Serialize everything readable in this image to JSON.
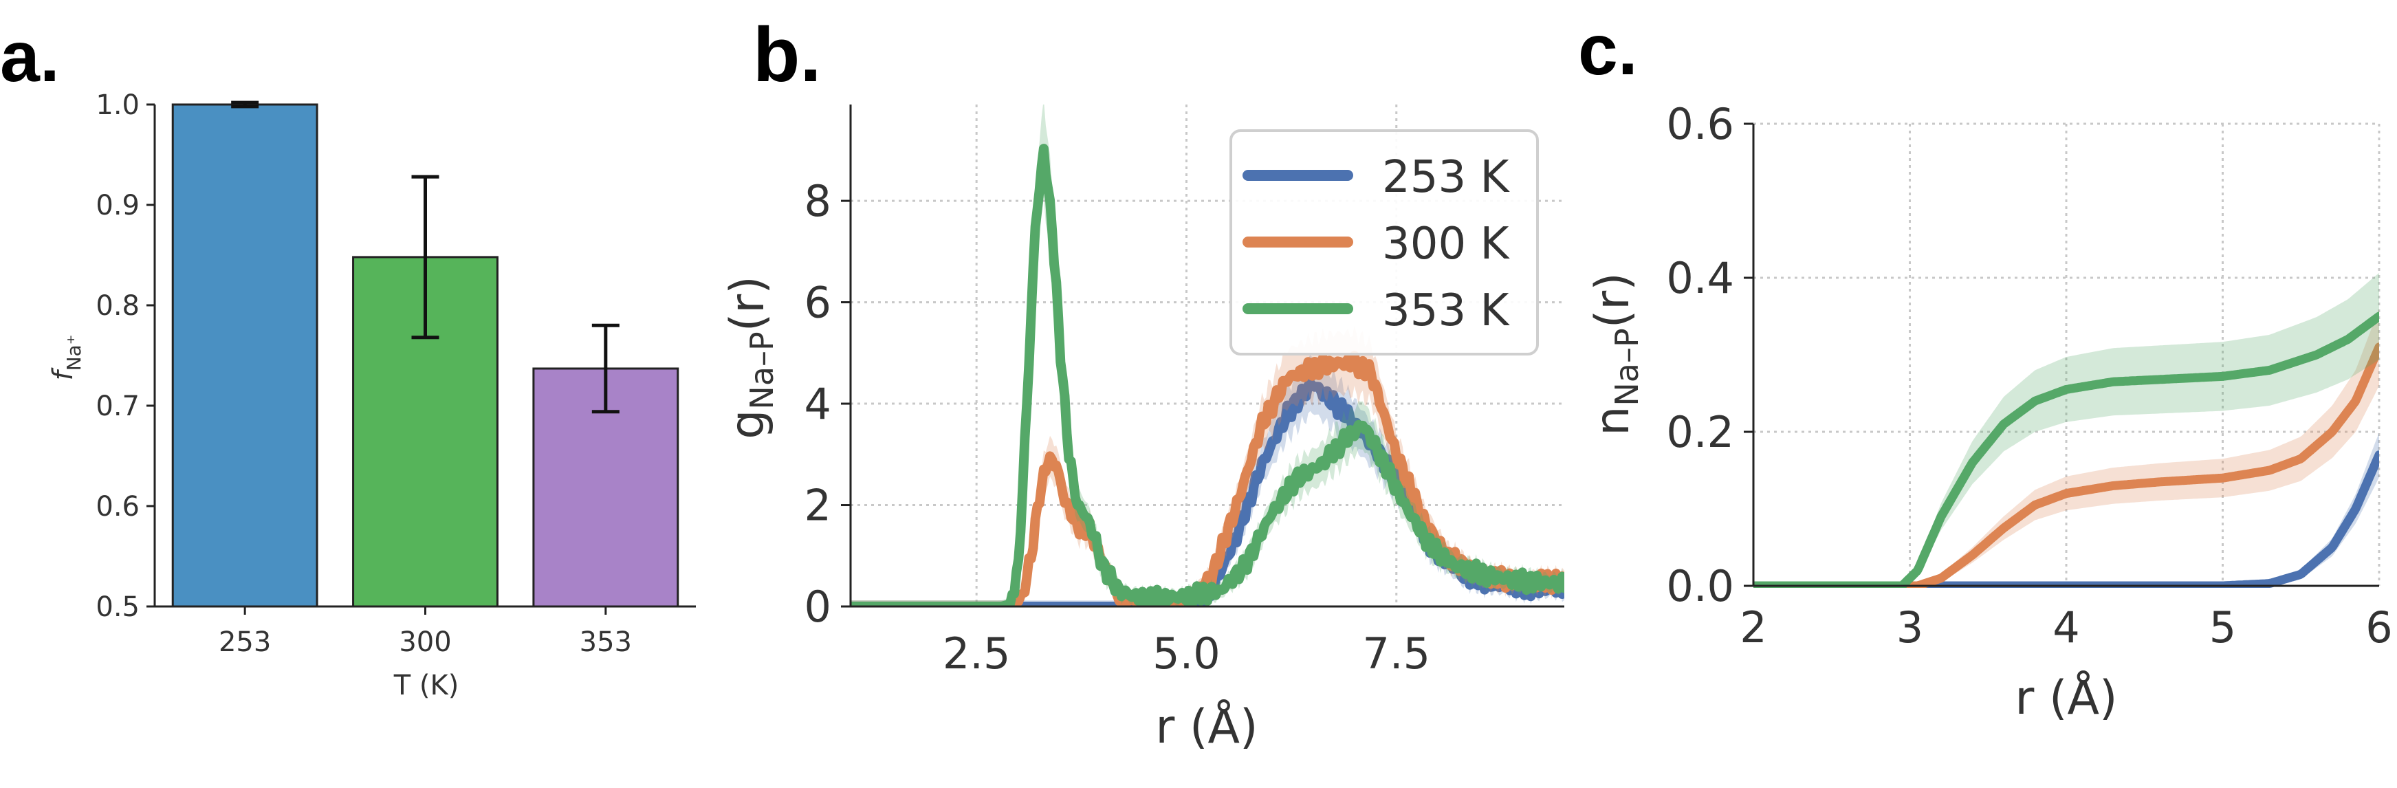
{
  "colors": {
    "blue": "#4c72b0",
    "orange": "#dd8452",
    "green": "#55a868",
    "bar_blue": "#4a90c2",
    "bar_green": "#56b45a",
    "bar_purple": "#a883c8"
  },
  "chart_data": [
    {
      "type": "bar",
      "panel_label": "a.",
      "categories": [
        "253",
        "300",
        "353"
      ],
      "values": [
        1.0,
        0.848,
        0.737
      ],
      "errors": [
        0.002,
        0.08,
        0.043
      ],
      "colors": [
        "#4a90c2",
        "#56b45a",
        "#a883c8"
      ],
      "xlabel": "T (K)",
      "ylabel_main": "f",
      "ylabel_sub": "Na⁺",
      "ylim": [
        0.5,
        1.0
      ],
      "yticks": [
        "0.5",
        "0.6",
        "0.7",
        "0.8",
        "0.9",
        "1.0"
      ],
      "grid": false
    },
    {
      "type": "line",
      "panel_label": "b.",
      "xlabel": "r (Å)",
      "ylabel_main": "g",
      "ylabel_sub": "Na–P",
      "ylabel_tail": "(r)",
      "xlim": [
        1.0,
        9.5
      ],
      "ylim": [
        0,
        9.9
      ],
      "xticks": [
        "2.5",
        "5.0",
        "7.5"
      ],
      "yticks": [
        "0",
        "2",
        "4",
        "6",
        "8"
      ],
      "grid": true,
      "legend_position": "top-right",
      "legend": [
        "253 K",
        "300 K",
        "353 K"
      ],
      "series": [
        {
          "name": "253 K",
          "color": "#4c72b0",
          "x": [
            1.0,
            4.8,
            5.0,
            5.3,
            5.6,
            5.9,
            6.2,
            6.5,
            6.7,
            6.9,
            7.1,
            7.3,
            7.6,
            7.9,
            8.3,
            8.8,
            9.2,
            9.5
          ],
          "y": [
            0.0,
            0.0,
            0.1,
            0.3,
            1.4,
            2.8,
            3.8,
            4.4,
            4.1,
            3.8,
            3.4,
            3.0,
            2.2,
            1.2,
            0.6,
            0.4,
            0.35,
            0.35
          ]
        },
        {
          "name": "300 K",
          "color": "#dd8452",
          "x": [
            1.0,
            2.95,
            3.05,
            3.15,
            3.25,
            3.35,
            3.45,
            3.55,
            3.7,
            3.85,
            4.0,
            4.2,
            4.5,
            5.0,
            5.3,
            5.6,
            5.9,
            6.2,
            6.5,
            6.8,
            7.0,
            7.2,
            7.5,
            7.8,
            8.1,
            8.5,
            9.0,
            9.5
          ],
          "y": [
            0.0,
            0.0,
            0.2,
            1.0,
            2.2,
            2.9,
            2.8,
            2.1,
            1.6,
            1.5,
            0.9,
            0.2,
            0.05,
            0.1,
            0.6,
            2.0,
            3.6,
            4.5,
            4.7,
            4.8,
            4.8,
            4.6,
            3.0,
            1.8,
            1.0,
            0.6,
            0.5,
            0.5
          ]
        },
        {
          "name": "353 K",
          "color": "#55a868",
          "x": [
            1.0,
            2.8,
            2.9,
            3.0,
            3.1,
            3.2,
            3.3,
            3.4,
            3.5,
            3.6,
            3.7,
            3.8,
            3.9,
            4.0,
            4.2,
            4.5,
            5.0,
            5.4,
            5.7,
            6.0,
            6.3,
            6.6,
            6.9,
            7.1,
            7.3,
            7.6,
            7.9,
            8.2,
            8.6,
            9.0,
            9.5
          ],
          "y": [
            0.0,
            0.0,
            0.05,
            0.8,
            4.0,
            7.5,
            9.0,
            7.5,
            5.0,
            3.0,
            2.0,
            1.8,
            1.4,
            0.8,
            0.3,
            0.15,
            0.2,
            0.3,
            0.8,
            1.8,
            2.5,
            2.8,
            3.3,
            3.6,
            3.0,
            2.0,
            1.2,
            0.8,
            0.6,
            0.5,
            0.45
          ]
        }
      ]
    },
    {
      "type": "line",
      "panel_label": "c.",
      "xlabel": "r (Å)",
      "ylabel_main": "n",
      "ylabel_sub": "Na–P",
      "ylabel_tail": "(r)",
      "xlim": [
        2,
        6
      ],
      "ylim": [
        0,
        0.6
      ],
      "xticks": [
        "2",
        "3",
        "4",
        "5",
        "6"
      ],
      "yticks": [
        "0.0",
        "0.2",
        "0.4",
        "0.6"
      ],
      "grid": true,
      "series": [
        {
          "name": "253 K",
          "color": "#4c72b0",
          "x": [
            2.0,
            5.0,
            5.3,
            5.5,
            5.7,
            5.85,
            6.0
          ],
          "y": [
            0.0,
            0.0,
            0.003,
            0.015,
            0.05,
            0.1,
            0.17
          ]
        },
        {
          "name": "300 K",
          "color": "#dd8452",
          "x": [
            2.0,
            3.05,
            3.2,
            3.4,
            3.6,
            3.8,
            4.0,
            4.3,
            4.6,
            5.0,
            5.3,
            5.5,
            5.7,
            5.85,
            6.0
          ],
          "y": [
            0.0,
            0.0,
            0.01,
            0.04,
            0.075,
            0.105,
            0.12,
            0.13,
            0.135,
            0.14,
            0.15,
            0.165,
            0.2,
            0.24,
            0.31
          ]
        },
        {
          "name": "353 K",
          "color": "#55a868",
          "x": [
            2.0,
            2.95,
            3.05,
            3.2,
            3.4,
            3.6,
            3.8,
            4.0,
            4.3,
            4.6,
            5.0,
            5.3,
            5.6,
            5.8,
            6.0
          ],
          "y": [
            0.0,
            0.0,
            0.02,
            0.09,
            0.16,
            0.21,
            0.24,
            0.255,
            0.265,
            0.268,
            0.272,
            0.28,
            0.3,
            0.32,
            0.35
          ]
        }
      ]
    }
  ]
}
